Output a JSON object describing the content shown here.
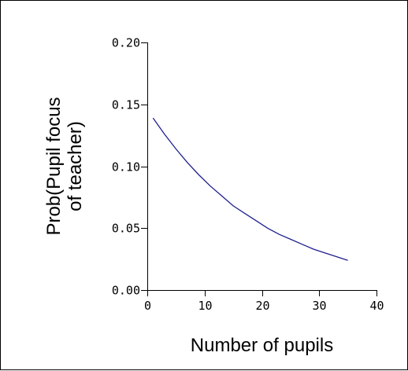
{
  "chart_data": {
    "type": "line",
    "title": "",
    "xlabel": "Number of pupils",
    "ylabel_lines": [
      "Prob(Pupil focus",
      "of teacher)"
    ],
    "xlim": [
      0,
      40
    ],
    "ylim": [
      0.0,
      0.2
    ],
    "x_ticks": [
      0,
      10,
      20,
      30,
      40
    ],
    "x_tick_labels": [
      "0",
      "10",
      "20",
      "30",
      "40"
    ],
    "y_ticks": [
      0.0,
      0.05,
      0.1,
      0.15,
      0.2
    ],
    "y_tick_labels": [
      "0.00",
      "0.05",
      "0.10",
      "0.15",
      "0.20"
    ],
    "grid": false,
    "series": [
      {
        "color": "#1f1f8f",
        "x": [
          1,
          3,
          5,
          7,
          9,
          11,
          13,
          15,
          17,
          19,
          21,
          23,
          25,
          27,
          29,
          31,
          33,
          35
        ],
        "y": [
          0.139,
          0.126,
          0.114,
          0.103,
          0.093,
          0.084,
          0.076,
          0.068,
          0.062,
          0.056,
          0.05,
          0.045,
          0.041,
          0.037,
          0.033,
          0.03,
          0.027,
          0.024
        ]
      }
    ]
  }
}
